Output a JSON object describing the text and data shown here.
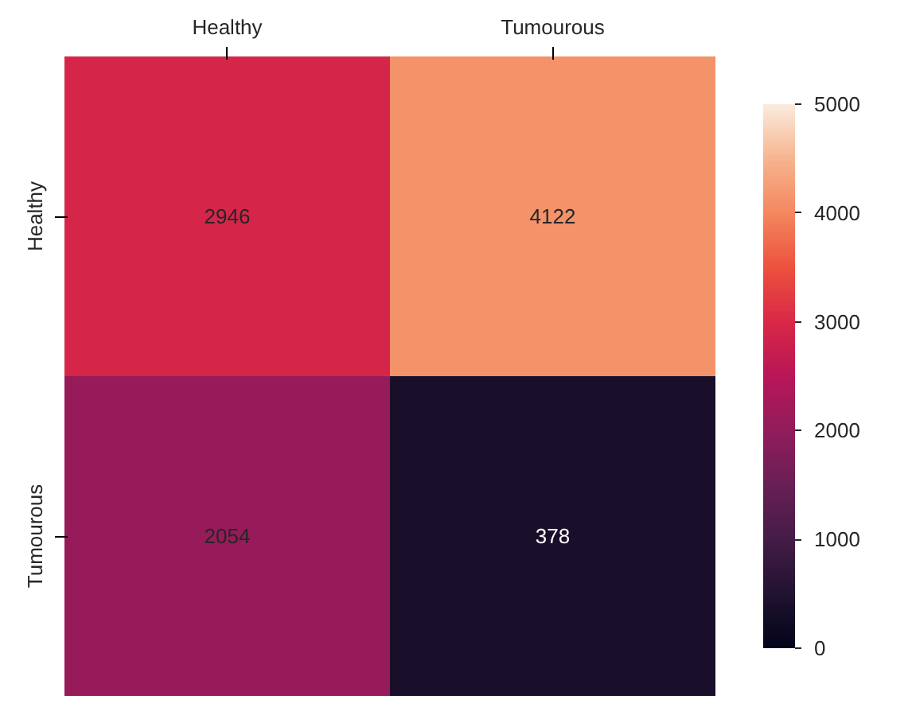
{
  "chart_data": {
    "type": "heatmap",
    "categories": [
      "Healthy",
      "Tumourous"
    ],
    "y_categories": [
      "Healthy",
      "Tumourous"
    ],
    "cells": [
      [
        2946,
        4122
      ],
      [
        2054,
        378
      ]
    ],
    "clim": [
      0,
      5000
    ],
    "cticks": [
      0,
      1000,
      2000,
      3000,
      4000,
      5000
    ],
    "data_labels": true
  }
}
